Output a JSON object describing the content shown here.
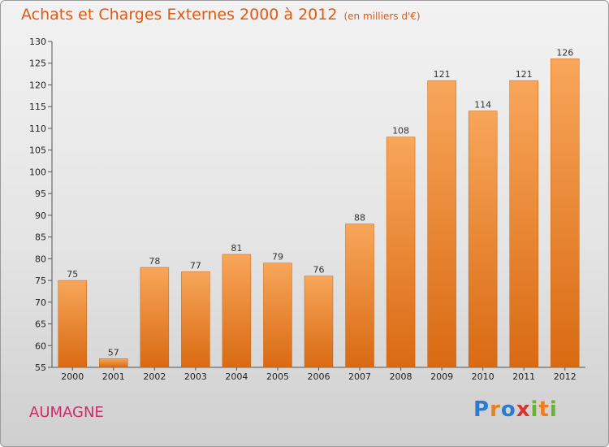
{
  "title": "Achats et Charges Externes 2000 à 2012",
  "subtitle": "(en milliers d'€)",
  "place": "AUMAGNE",
  "logo": {
    "text": "Proxiti",
    "colors": [
      "#2b7bd1",
      "#f07d1a",
      "#6ab42d",
      "#d9322f"
    ]
  },
  "chart_data": {
    "type": "bar",
    "title": "Achats et Charges Externes 2000 à 2012",
    "subtitle": "(en milliers d'€)",
    "categories": [
      "2000",
      "2001",
      "2002",
      "2003",
      "2004",
      "2005",
      "2006",
      "2007",
      "2008",
      "2009",
      "2010",
      "2011",
      "2012"
    ],
    "values": [
      75,
      57,
      78,
      77,
      81,
      79,
      76,
      88,
      108,
      121,
      114,
      121,
      126
    ],
    "ylim": [
      55,
      130
    ],
    "yticks": [
      55,
      60,
      65,
      70,
      75,
      80,
      85,
      90,
      95,
      100,
      105,
      110,
      115,
      120,
      125,
      130
    ],
    "grid": false,
    "bar_color": "#f08a2c",
    "xlabel": "",
    "ylabel": ""
  }
}
